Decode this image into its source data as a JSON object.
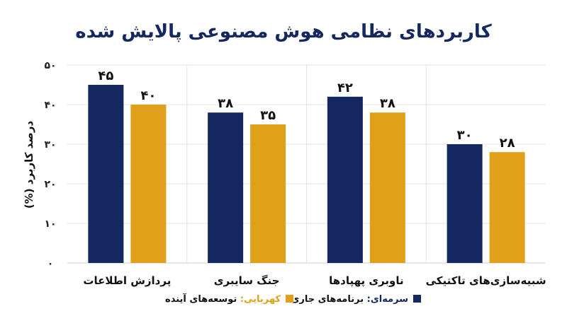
{
  "chart_data": {
    "type": "bar",
    "title": "کاربردهای نظامی هوش مصنوعی پالایش شده",
    "ylabel": "درصد کاربرد (%)",
    "xlabel": "",
    "ylim": [
      0,
      50
    ],
    "yticks": [
      "۰",
      "۱۰",
      "۲۰",
      "۳۰",
      "۴۰",
      "۵۰"
    ],
    "categories": [
      "پردازش اطلاعات",
      "جنگ سایبری",
      "ناوبری پهپادها",
      "شبیه‌سازی‌های تاکتیکی"
    ],
    "series": [
      {
        "name": "برنامه‌های جاری",
        "legend_prefix": "سرمه‌ای:",
        "color": "#14285f",
        "values": [
          45,
          38,
          42,
          30
        ],
        "labels": [
          "۴۵",
          "۳۸",
          "۴۲",
          "۳۰"
        ]
      },
      {
        "name": "توسعه‌های آینده",
        "legend_prefix": "کهربایی:",
        "color": "#e0a019",
        "values": [
          40,
          35,
          38,
          28
        ],
        "labels": [
          "۴۰",
          "۳۵",
          "۳۸",
          "۲۸"
        ]
      }
    ],
    "grid": true,
    "legend_position": "bottom-center"
  }
}
